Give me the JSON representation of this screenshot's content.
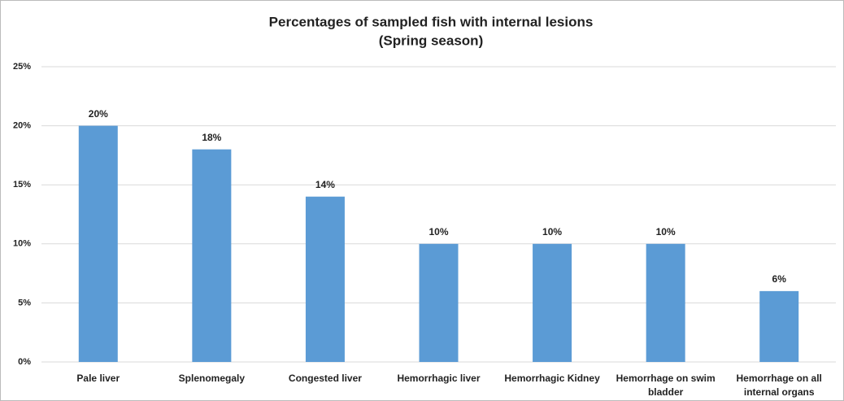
{
  "chart_data": {
    "type": "bar",
    "title": "Percentages of sampled fish with internal lesions",
    "subtitle": "(Spring season)",
    "categories": [
      "Pale liver",
      "Splenomegaly",
      "Congested liver",
      "Hemorrhagic liver",
      "Hemorrhagic Kidney",
      "Hemorrhage on swim bladder",
      "Hemorrhage on all internal organs"
    ],
    "values": [
      20,
      18,
      14,
      10,
      10,
      10,
      6
    ],
    "value_labels": [
      "20%",
      "18%",
      "14%",
      "10%",
      "10%",
      "10%",
      "6%"
    ],
    "color": "#5b9bd5",
    "ylim": [
      0,
      25
    ],
    "yticks": [
      {
        "value": 0,
        "label": "0%"
      },
      {
        "value": 5,
        "label": "5%"
      },
      {
        "value": 10,
        "label": "10%"
      },
      {
        "value": 15,
        "label": "15%"
      },
      {
        "value": 20,
        "label": "20%"
      },
      {
        "value": 25,
        "label": "25%"
      }
    ],
    "grid": true
  }
}
